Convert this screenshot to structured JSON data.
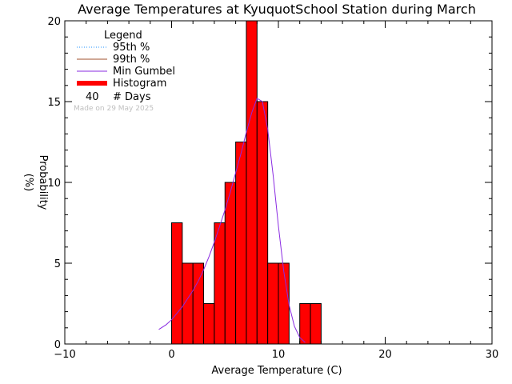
{
  "chart_data": {
    "type": "bar",
    "title": "Average Temperatures at KyuquotSchool Station during March",
    "xlabel": "Average Temperature (C)",
    "ylabel": "Probability",
    "ylabel_unit": "(%)",
    "xlim": [
      -10,
      30
    ],
    "ylim": [
      0,
      20
    ],
    "xticks": [
      -10,
      0,
      10,
      20,
      30
    ],
    "yticks": [
      0,
      5,
      10,
      15,
      20
    ],
    "histogram": {
      "bin_width": 1,
      "bins": [
        {
          "x0": 0,
          "x1": 1,
          "value": 7.5
        },
        {
          "x0": 1,
          "x1": 2,
          "value": 5
        },
        {
          "x0": 2,
          "x1": 3,
          "value": 5
        },
        {
          "x0": 3,
          "x1": 4,
          "value": 2.5
        },
        {
          "x0": 4,
          "x1": 5,
          "value": 7.5
        },
        {
          "x0": 5,
          "x1": 6,
          "value": 10
        },
        {
          "x0": 6,
          "x1": 7,
          "value": 12.5
        },
        {
          "x0": 7,
          "x1": 8,
          "value": 20
        },
        {
          "x0": 8,
          "x1": 9,
          "value": 15
        },
        {
          "x0": 9,
          "x1": 10,
          "value": 5
        },
        {
          "x0": 10,
          "x1": 11,
          "value": 5
        },
        {
          "x0": 11,
          "x1": 12,
          "value": 0
        },
        {
          "x0": 12,
          "x1": 13,
          "value": 2.5
        },
        {
          "x0": 13,
          "x1": 14,
          "value": 2.5
        }
      ]
    },
    "gumbel_curve": {
      "x": [
        -1.2,
        -0.5,
        0,
        0.5,
        1,
        1.5,
        2,
        2.5,
        3,
        3.5,
        4,
        4.5,
        5,
        5.5,
        6,
        6.5,
        7,
        7.5,
        8,
        8.5,
        9,
        9.5,
        10,
        10.5,
        11,
        11.5,
        12,
        12.5
      ],
      "y": [
        0.9,
        1.2,
        1.5,
        1.9,
        2.3,
        2.8,
        3.3,
        3.9,
        4.6,
        5.4,
        6.3,
        7.3,
        8.3,
        9.4,
        10.6,
        11.8,
        13.1,
        14.3,
        15.2,
        15.0,
        13.3,
        10.5,
        7.3,
        4.5,
        2.4,
        1.1,
        0.4,
        0.1
      ]
    },
    "legend": {
      "title": "Legend",
      "position": "top-left",
      "entries": [
        {
          "label": "95th %",
          "color": "#1e90ff",
          "style": "dotted"
        },
        {
          "label": "99th %",
          "color": "#a0522d",
          "style": "solid"
        },
        {
          "label": "Min Gumbel",
          "color": "#8a2be2",
          "style": "solid"
        },
        {
          "label": "Histogram",
          "color": "#ff0000",
          "style": "thick"
        }
      ],
      "days_count": "40",
      "days_label": "# Days"
    },
    "made_on": "Made on 29 May 2025",
    "colors": {
      "histogram": "#ff0000",
      "gumbel": "#8a2be2",
      "axis": "#000000",
      "made_on": "#c0c0c0"
    }
  }
}
